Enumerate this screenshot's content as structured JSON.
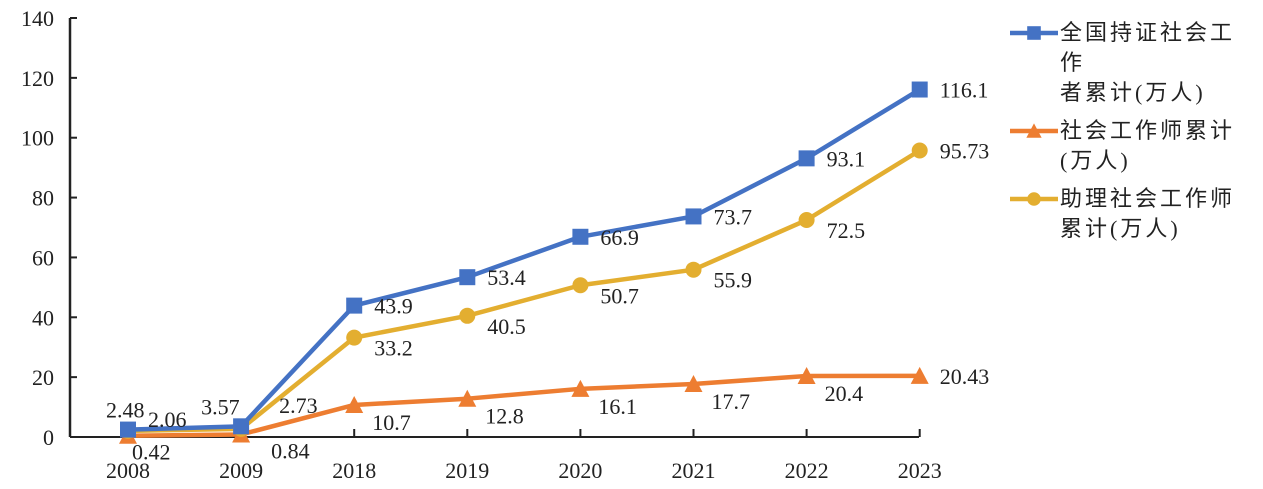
{
  "chart_data": {
    "type": "line",
    "title": "",
    "xlabel": "",
    "ylabel": "",
    "categories": [
      "2008",
      "2009",
      "2018",
      "2019",
      "2020",
      "2021",
      "2022",
      "2023"
    ],
    "ylim": [
      0,
      140
    ],
    "yticks": [
      0,
      20,
      40,
      60,
      80,
      100,
      120,
      140
    ],
    "grid": false,
    "legend_position": "right",
    "series": [
      {
        "name": "全国持证社会工作者累计(万人)",
        "name_lines": [
          "全国持证社会工作",
          "者累计(万人)"
        ],
        "color": "#4472C4",
        "marker": "square",
        "values": [
          2.48,
          3.57,
          43.9,
          53.4,
          66.9,
          73.7,
          93.1,
          116.1
        ],
        "labels": [
          "2.48",
          "3.57",
          "43.9",
          "53.4",
          "66.9",
          "73.7",
          "93.1",
          "116.1"
        ]
      },
      {
        "name": "社会工作师累计(万人)",
        "name_lines": [
          "社会工作师累计",
          "(万人)"
        ],
        "color": "#ED7D31",
        "marker": "triangle",
        "values": [
          0.42,
          0.84,
          10.7,
          12.8,
          16.1,
          17.7,
          20.4,
          20.43
        ],
        "labels": [
          "0.42",
          "0.84",
          "10.7",
          "12.8",
          "16.1",
          "17.7",
          "20.4",
          "20.43"
        ]
      },
      {
        "name": "助理社会工作师累计(万人)",
        "name_lines": [
          "助理社会工作师",
          "累计(万人)"
        ],
        "color": "#E3AE30",
        "marker": "circle",
        "values": [
          2.06,
          2.73,
          33.2,
          40.5,
          50.7,
          55.9,
          72.5,
          95.73
        ],
        "labels": [
          "2.06",
          "2.73",
          "33.2",
          "40.5",
          "50.7",
          "55.9",
          "72.5",
          "95.73"
        ]
      }
    ]
  }
}
